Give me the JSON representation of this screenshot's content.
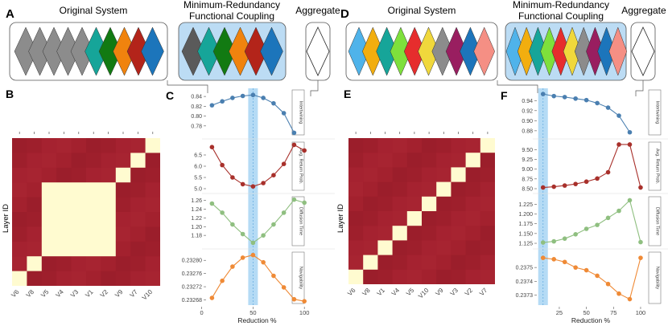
{
  "left": {
    "panel_a_letter": "A",
    "panel_b_letter": "B",
    "panel_c_letter": "C",
    "original_title": "Original System",
    "coupling_title_line1": "Minimum-Redundancy",
    "coupling_title_line2": "Functional Coupling",
    "aggregate_title": "Aggregate",
    "original_colors": [
      "#8c8c8c",
      "#8c8c8c",
      "#8c8c8c",
      "#8c8c8c",
      "#8c8c8c",
      "#16a599",
      "#127a12",
      "#f0830e",
      "#b3241a",
      "#1c75bb"
    ],
    "coupling_colors": [
      "#5a5a5a",
      "#16a599",
      "#127a12",
      "#f0830e",
      "#b3241a",
      "#1c75bb"
    ],
    "heatmap": {
      "ylabel": "Layer ID",
      "xticks": [
        "V6",
        "V8",
        "V5",
        "V4",
        "V3",
        "V1",
        "V2",
        "V9",
        "V7",
        "V10"
      ],
      "blocks": [
        [
          0,
          0
        ],
        [
          1,
          1
        ],
        [
          2,
          6
        ],
        [
          7,
          7
        ],
        [
          8,
          8
        ],
        [
          9,
          9
        ]
      ]
    }
  },
  "right": {
    "panel_d_letter": "D",
    "panel_e_letter": "E",
    "panel_f_letter": "F",
    "original_title": "Original System",
    "coupling_title_line1": "Minimum-Redundancy",
    "coupling_title_line2": "Functional Coupling",
    "aggregate_title": "Aggregate",
    "original_colors": [
      "#4fb3ea",
      "#f2ae0f",
      "#16a599",
      "#7ee03c",
      "#e62d2d",
      "#f0d83c",
      "#8c8c8c",
      "#991e60",
      "#1c75bb",
      "#f58f84"
    ],
    "coupling_colors": [
      "#4fb3ea",
      "#f2ae0f",
      "#16a599",
      "#7ee03c",
      "#e62d2d",
      "#f0d83c",
      "#8c8c8c",
      "#991e60",
      "#1c75bb",
      "#f58f84"
    ],
    "heatmap": {
      "ylabel": "Layer ID",
      "xticks": [
        "V6",
        "V8",
        "V1",
        "V4",
        "V5",
        "V10",
        "V9",
        "V3",
        "V2",
        "V7"
      ],
      "blocks": [
        [
          0,
          0
        ],
        [
          1,
          1
        ],
        [
          2,
          2
        ],
        [
          3,
          3
        ],
        [
          4,
          4
        ],
        [
          5,
          5
        ],
        [
          6,
          6
        ],
        [
          7,
          7
        ],
        [
          8,
          8
        ],
        [
          9,
          9
        ]
      ]
    }
  },
  "chart_data": [
    {
      "type": "line",
      "panel": "C",
      "xlabel": "Reduction %",
      "x_ticks": [
        "0",
        "50",
        "100"
      ],
      "x_tick_values": [
        0,
        50,
        100
      ],
      "xlim": [
        5,
        103
      ],
      "highlight_x": 50,
      "series": [
        {
          "name": "Intertwining",
          "color": "#4a7fb0",
          "x": [
            10,
            20,
            30,
            40,
            50,
            60,
            70,
            80,
            90
          ],
          "values": [
            0.822,
            0.83,
            0.837,
            0.841,
            0.843,
            0.837,
            0.826,
            0.806,
            0.766
          ],
          "ylim": [
            0.765,
            0.85
          ],
          "y_ticks": [
            "0.84",
            "0.82",
            "0.80",
            "0.78"
          ],
          "y_tick_values": [
            0.84,
            0.82,
            0.8,
            0.78
          ]
        },
        {
          "name": "Avg. Return Prob.",
          "color": "#a8302b",
          "x": [
            10,
            20,
            30,
            40,
            50,
            60,
            70,
            80,
            90,
            100
          ],
          "values": [
            6.85,
            6.05,
            5.5,
            5.2,
            5.1,
            5.25,
            5.6,
            6.1,
            6.95,
            6.7
          ],
          "ylim": [
            5.0,
            7.0
          ],
          "y_ticks": [
            "6.5",
            "6.0",
            "5.5",
            "5.0"
          ],
          "y_tick_values": [
            6.5,
            6.0,
            5.5,
            5.0
          ]
        },
        {
          "name": "Diffusion Time",
          "color": "#8fbf80",
          "x": [
            10,
            20,
            30,
            40,
            50,
            60,
            70,
            80,
            90,
            100
          ],
          "values": [
            1.253,
            1.232,
            1.205,
            1.183,
            1.163,
            1.18,
            1.205,
            1.232,
            1.262,
            1.255
          ],
          "ylim": [
            1.16,
            1.265
          ],
          "y_ticks": [
            "1.26",
            "1.24",
            "1.22",
            "1.20",
            "1.18"
          ],
          "y_tick_values": [
            1.26,
            1.24,
            1.22,
            1.2,
            1.18
          ]
        },
        {
          "name": "Navigability",
          "color": "#ef8a36",
          "x": [
            10,
            20,
            30,
            40,
            50,
            60,
            70,
            80,
            90,
            100
          ],
          "values": [
            0.232686,
            0.232738,
            0.232781,
            0.232808,
            0.232816,
            0.232794,
            0.232753,
            0.232718,
            0.232682,
            0.232676
          ],
          "ylim": [
            0.232674,
            0.23282
          ],
          "y_ticks": [
            "0.23280",
            "0.23276",
            "0.23272",
            "0.23268"
          ],
          "y_tick_values": [
            0.2328,
            0.23276,
            0.23272,
            0.23268
          ]
        }
      ]
    },
    {
      "type": "line",
      "panel": "F",
      "xlabel": "Reduction %",
      "x_ticks": [
        "25",
        "50",
        "75",
        "100"
      ],
      "x_tick_values": [
        25,
        50,
        75,
        100
      ],
      "xlim": [
        5,
        103
      ],
      "highlight_x": 10,
      "series": [
        {
          "name": "Intertwining",
          "color": "#4a7fb0",
          "x": [
            10,
            20,
            30,
            40,
            50,
            60,
            70,
            80,
            90
          ],
          "values": [
            0.953,
            0.949,
            0.947,
            0.944,
            0.941,
            0.935,
            0.926,
            0.91,
            0.877
          ],
          "ylim": [
            0.875,
            0.958
          ],
          "y_ticks": [
            "0.94",
            "0.92",
            "0.90",
            "0.88"
          ],
          "y_tick_values": [
            0.94,
            0.92,
            0.9,
            0.88
          ]
        },
        {
          "name": "Avg. Return Prob.",
          "color": "#a8302b",
          "x": [
            10,
            20,
            30,
            40,
            50,
            60,
            70,
            80,
            90,
            100
          ],
          "values": [
            8.53,
            8.55,
            8.58,
            8.62,
            8.68,
            8.76,
            8.92,
            9.63,
            9.63,
            8.53
          ],
          "ylim": [
            8.5,
            9.65
          ],
          "y_ticks": [
            "9.50",
            "9.25",
            "9.00",
            "8.75",
            "8.50"
          ],
          "y_tick_values": [
            9.5,
            9.25,
            9.0,
            8.75,
            8.5
          ]
        },
        {
          "name": "Diffusion Time",
          "color": "#8fbf80",
          "x": [
            10,
            20,
            30,
            40,
            50,
            60,
            70,
            80,
            90,
            100
          ],
          "values": [
            1.127,
            1.13,
            1.137,
            1.148,
            1.162,
            1.172,
            1.19,
            1.208,
            1.235,
            1.128
          ],
          "ylim": [
            1.123,
            1.24
          ],
          "y_ticks": [
            "1.225",
            "1.200",
            "1.175",
            "1.150",
            "1.125"
          ],
          "y_tick_values": [
            1.225,
            1.2,
            1.175,
            1.15,
            1.125
          ]
        },
        {
          "name": "Navigability",
          "color": "#ef8a36",
          "x": [
            10,
            20,
            30,
            40,
            50,
            60,
            70,
            80,
            90,
            100
          ],
          "values": [
            0.23757,
            0.23756,
            0.23754,
            0.2375,
            0.23748,
            0.23744,
            0.23738,
            0.23731,
            0.23727,
            0.23757
          ],
          "ylim": [
            0.23725,
            0.2376
          ],
          "y_ticks": [
            "0.2375",
            "0.2374",
            "0.2373"
          ],
          "y_tick_values": [
            0.2375,
            0.2374,
            0.2373
          ]
        }
      ]
    }
  ]
}
